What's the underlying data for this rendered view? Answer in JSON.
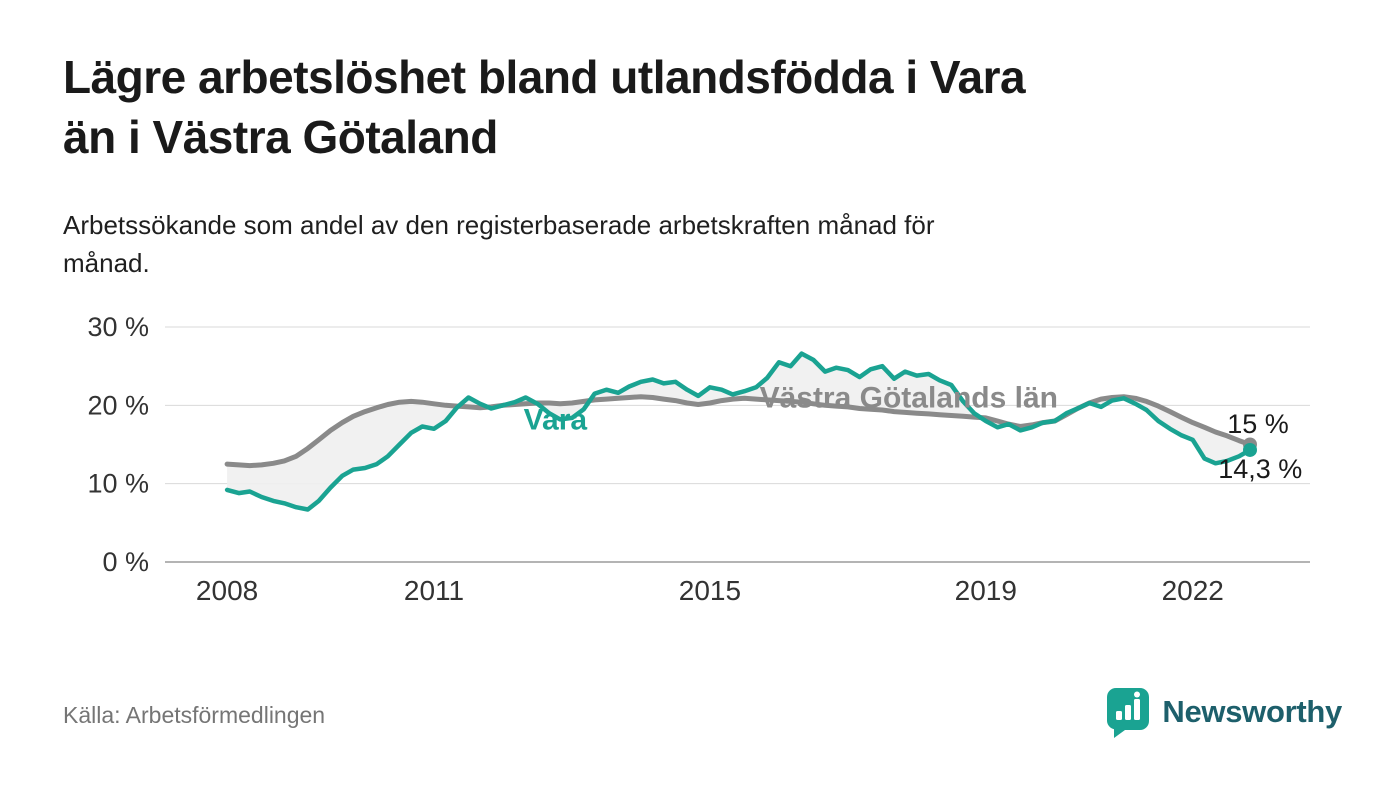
{
  "header": {
    "title": "Lägre arbetslöshet bland utlandsfödda i Vara\nän i Västra Götaland",
    "subtitle": "Arbetssökande som andel av den registerbaserade arbetskraften månad för\nmånad."
  },
  "footer": {
    "source": "Källa: Arbetsförmedlingen",
    "brand": "Newsworthy"
  },
  "colors": {
    "background": "#ffffff",
    "vara_line": "#1aa392",
    "region_line": "#8a8a8a",
    "fill_between": "#f0f0f0",
    "grid": "#d9d9d9",
    "zero_axis": "#9b9b9b",
    "tick_text": "#333333",
    "annotation_text": "#1a1a1a",
    "source_text": "#757575",
    "brand_text": "#1d5f6b"
  },
  "chart_data": {
    "type": "line",
    "title": "Lägre arbetslöshet bland utlandsfödda i Vara än i Västra Götaland",
    "subtitle": "Arbetssökande som andel av den registerbaserade arbetskraften månad för månad.",
    "xlabel": "",
    "ylabel": "",
    "grid": true,
    "legend_position": "inline-labels",
    "xlim": [
      2007.1,
      2023.7
    ],
    "ylim": [
      0,
      30
    ],
    "xticks": [
      2008,
      2011,
      2015,
      2019,
      2022
    ],
    "yticks": [
      0,
      10,
      20,
      30
    ],
    "ytick_labels": [
      "0 %",
      "10 %",
      "20 %",
      "30 %"
    ],
    "fill_between_color": "#f0f0f0",
    "x_unit": "year (monthly observations)",
    "x": [
      2008,
      2008.17,
      2008.33,
      2008.5,
      2008.67,
      2008.83,
      2009,
      2009.17,
      2009.33,
      2009.5,
      2009.67,
      2009.83,
      2010,
      2010.17,
      2010.33,
      2010.5,
      2010.67,
      2010.83,
      2011,
      2011.17,
      2011.33,
      2011.5,
      2011.67,
      2011.83,
      2012,
      2012.17,
      2012.33,
      2012.5,
      2012.67,
      2012.83,
      2013,
      2013.17,
      2013.33,
      2013.5,
      2013.67,
      2013.83,
      2014,
      2014.17,
      2014.33,
      2014.5,
      2014.67,
      2014.83,
      2015,
      2015.17,
      2015.33,
      2015.5,
      2015.67,
      2015.83,
      2016,
      2016.17,
      2016.33,
      2016.5,
      2016.67,
      2016.83,
      2017,
      2017.17,
      2017.33,
      2017.5,
      2017.67,
      2017.83,
      2018,
      2018.17,
      2018.33,
      2018.5,
      2018.67,
      2018.83,
      2019,
      2019.17,
      2019.33,
      2019.5,
      2019.67,
      2019.83,
      2020,
      2020.17,
      2020.33,
      2020.5,
      2020.67,
      2020.83,
      2021,
      2021.17,
      2021.33,
      2021.5,
      2021.67,
      2021.83,
      2022,
      2022.17,
      2022.33,
      2022.5,
      2022.67,
      2022.83
    ],
    "series": [
      {
        "id": "vastra-gotalands-lan",
        "name": "Västra Götalands län",
        "color": "#8a8a8a",
        "width": 5,
        "end_value": 15.0,
        "end_label": "15 %",
        "values": [
          12.5,
          12.4,
          12.3,
          12.4,
          12.6,
          12.9,
          13.5,
          14.5,
          15.6,
          16.8,
          17.8,
          18.6,
          19.2,
          19.7,
          20.1,
          20.4,
          20.5,
          20.4,
          20.2,
          20.0,
          19.9,
          19.8,
          19.7,
          19.8,
          20.0,
          20.1,
          20.2,
          20.3,
          20.3,
          20.2,
          20.3,
          20.5,
          20.7,
          20.8,
          20.9,
          21.0,
          21.1,
          21.0,
          20.8,
          20.6,
          20.3,
          20.1,
          20.3,
          20.6,
          20.8,
          20.9,
          20.8,
          20.7,
          20.6,
          20.5,
          20.4,
          20.2,
          20.0,
          19.9,
          19.8,
          19.6,
          19.5,
          19.4,
          19.2,
          19.1,
          19.0,
          18.9,
          18.8,
          18.7,
          18.6,
          18.5,
          18.4,
          18.0,
          17.6,
          17.3,
          17.5,
          17.8,
          18.0,
          18.8,
          19.6,
          20.3,
          20.8,
          21.0,
          21.1,
          20.9,
          20.5,
          19.9,
          19.2,
          18.5,
          17.8,
          17.2,
          16.6,
          16.1,
          15.5,
          15.0
        ]
      },
      {
        "id": "vara",
        "name": "Vara",
        "color": "#1aa392",
        "width": 4.5,
        "end_value": 14.3,
        "end_label": "14,3 %",
        "values": [
          9.2,
          8.8,
          9.0,
          8.3,
          7.8,
          7.5,
          7.0,
          6.7,
          7.8,
          9.5,
          11.0,
          11.8,
          12.0,
          12.5,
          13.5,
          15.0,
          16.5,
          17.3,
          17.0,
          18.0,
          19.7,
          21.0,
          20.2,
          19.6,
          20.0,
          20.4,
          21.0,
          20.2,
          19.0,
          18.2,
          18.4,
          19.5,
          21.5,
          22.0,
          21.6,
          22.4,
          23.0,
          23.3,
          22.8,
          23.0,
          22.0,
          21.2,
          22.3,
          22.0,
          21.4,
          21.8,
          22.3,
          23.5,
          25.5,
          25.0,
          26.6,
          25.8,
          24.3,
          24.8,
          24.5,
          23.6,
          24.6,
          25.0,
          23.4,
          24.3,
          23.8,
          24.0,
          23.2,
          22.6,
          20.5,
          19.0,
          18.0,
          17.2,
          17.6,
          16.8,
          17.2,
          17.8,
          18.0,
          19.0,
          19.6,
          20.3,
          19.8,
          20.6,
          20.9,
          20.2,
          19.4,
          18.0,
          17.0,
          16.2,
          15.6,
          13.2,
          12.6,
          12.9,
          13.5,
          14.3
        ]
      }
    ],
    "annotations": [
      {
        "text": "Vara",
        "x": 2012.3,
        "y": 16.9,
        "color": "#1aa392",
        "size": 30,
        "weight": 700,
        "anchor": "start"
      },
      {
        "text": "Västra Götalands län",
        "x": 2015.72,
        "y": 19.7,
        "color": "#8a8a8a",
        "size": 30,
        "weight": 700,
        "anchor": "start"
      },
      {
        "text": "15 %",
        "x": 2022.5,
        "y": 16.5,
        "color": "#1a1a1a",
        "size": 27,
        "weight": 400,
        "anchor": "start"
      },
      {
        "text": "14,3 %",
        "x": 2022.37,
        "y": 10.7,
        "color": "#1a1a1a",
        "size": 27,
        "weight": 400,
        "anchor": "start"
      }
    ]
  }
}
